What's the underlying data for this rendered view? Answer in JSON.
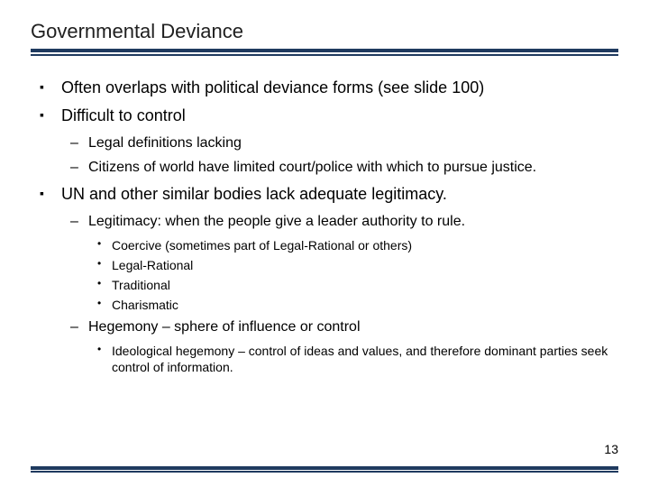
{
  "colors": {
    "rule": "#1f3a5f",
    "text": "#000000",
    "title": "#202020",
    "background": "#ffffff"
  },
  "title": "Governmental Deviance",
  "page_number": "13",
  "bullets": {
    "b1": "Often overlaps with political deviance forms (see slide 100)",
    "b2": "Difficult to control",
    "b2_1": "Legal definitions lacking",
    "b2_2": "Citizens of world have limited court/police with which to pursue justice.",
    "b3": "UN and other similar bodies lack adequate legitimacy.",
    "b3_1": "Legitimacy: when the people give a leader authority to rule.",
    "b3_1_1": "Coercive (sometimes part of Legal-Rational or others)",
    "b3_1_2": "Legal-Rational",
    "b3_1_3": "Traditional",
    "b3_1_4": "Charismatic",
    "b3_2": "Hegemony – sphere of influence or control",
    "b3_2_1": "Ideological hegemony – control of ideas and values, and therefore dominant parties seek control of information."
  }
}
